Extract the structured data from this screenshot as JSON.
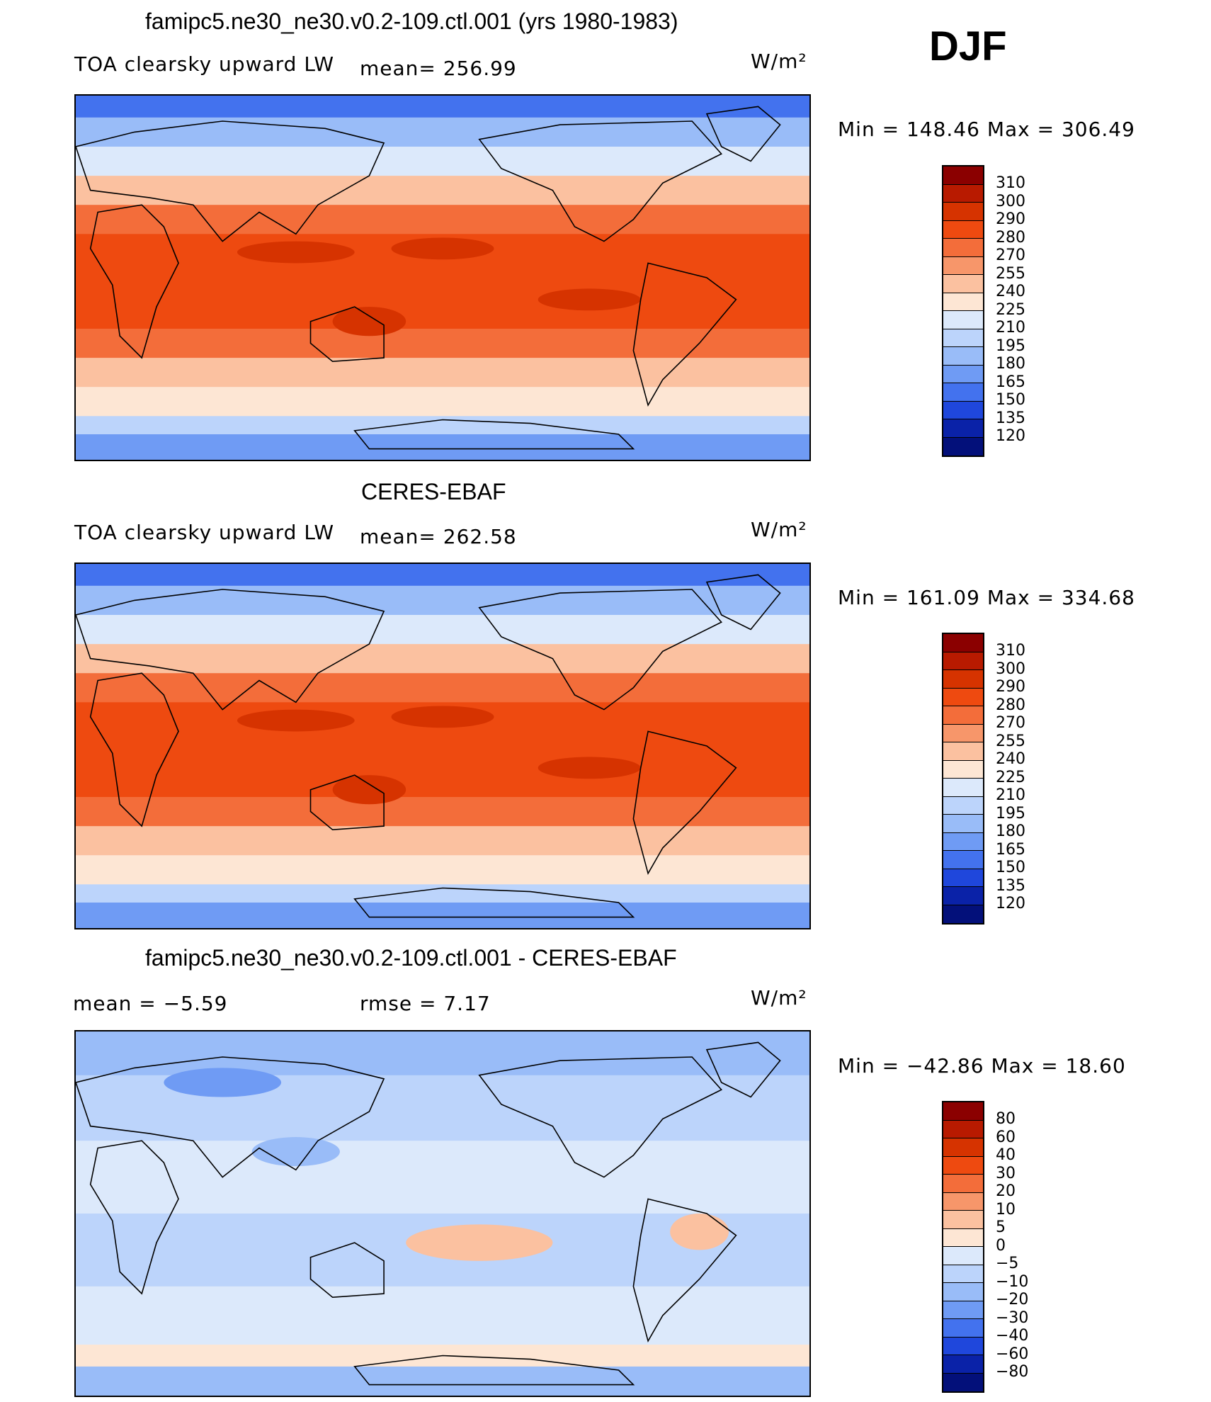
{
  "season": "DJF",
  "units": "W/m²",
  "panels": [
    {
      "id": "model",
      "title": "famipc5.ne30_ne30.v0.2-109.ctl.001 (yrs 1980-1983)",
      "variable": "TOA clearsky upward LW",
      "stat_text": "mean=  256.99",
      "minmax": "Min  =  148.46  Max  =  306.49",
      "field": "absolute",
      "colorbar": {
        "labels": [
          "310",
          "300",
          "290",
          "280",
          "270",
          "255",
          "240",
          "225",
          "210",
          "195",
          "180",
          "165",
          "150",
          "135",
          "120"
        ],
        "colors": [
          "#8b0000",
          "#b81a00",
          "#d63300",
          "#ee4a10",
          "#f36d3a",
          "#f7966a",
          "#fbc1a0",
          "#fde6d4",
          "#dce9fb",
          "#bcd4fb",
          "#99bcf8",
          "#6f9bf4",
          "#4372ee",
          "#1f47dc",
          "#0a22a8",
          "#03107a"
        ]
      }
    },
    {
      "id": "obs",
      "title": "CERES-EBAF",
      "variable": "TOA clearsky upward LW",
      "stat_text": "mean=  262.58",
      "minmax": "Min  =  161.09  Max  =  334.68",
      "field": "absolute",
      "colorbar": {
        "labels": [
          "310",
          "300",
          "290",
          "280",
          "270",
          "255",
          "240",
          "225",
          "210",
          "195",
          "180",
          "165",
          "150",
          "135",
          "120"
        ],
        "colors": [
          "#8b0000",
          "#b81a00",
          "#d63300",
          "#ee4a10",
          "#f36d3a",
          "#f7966a",
          "#fbc1a0",
          "#fde6d4",
          "#dce9fb",
          "#bcd4fb",
          "#99bcf8",
          "#6f9bf4",
          "#4372ee",
          "#1f47dc",
          "#0a22a8",
          "#03107a"
        ]
      }
    },
    {
      "id": "diff",
      "title": "famipc5.ne30_ne30.v0.2-109.ctl.001 - CERES-EBAF",
      "mean_text": "mean  =    −5.59",
      "rmse_text": "rmse  =     7.17",
      "minmax": "Min  =  −42.86  Max  =    18.60",
      "field": "difference",
      "colorbar": {
        "labels": [
          "80",
          "60",
          "40",
          "30",
          "20",
          "10",
          "5",
          "0",
          "−5",
          "−10",
          "−20",
          "−30",
          "−40",
          "−60",
          "−80"
        ],
        "colors": [
          "#8b0000",
          "#b81a00",
          "#d63300",
          "#ee4a10",
          "#f36d3a",
          "#f7966a",
          "#fbc1a0",
          "#fde6d4",
          "#dce9fb",
          "#bcd4fb",
          "#99bcf8",
          "#6f9bf4",
          "#4372ee",
          "#1f47dc",
          "#0a22a8",
          "#03107a"
        ]
      }
    }
  ]
}
